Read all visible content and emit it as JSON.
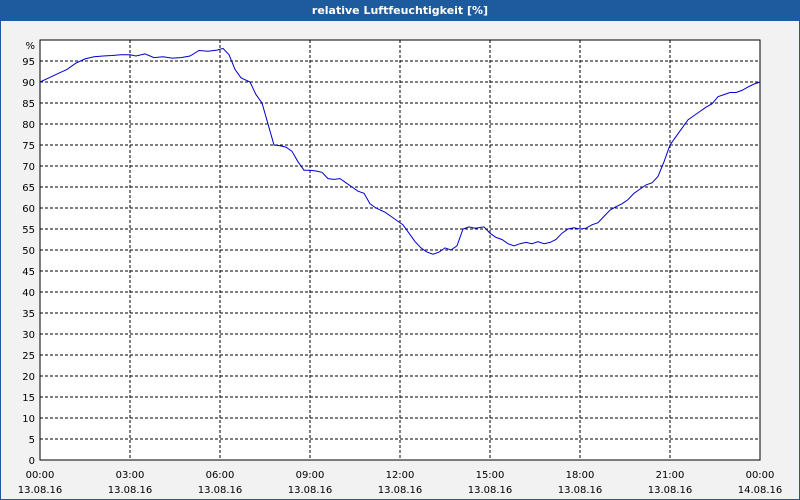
{
  "chart_data": {
    "type": "line",
    "title": "relative Luftfeuchtigkeit [%]",
    "y_unit_label": "%",
    "ylim": [
      0,
      100
    ],
    "y_ticks": [
      0,
      5,
      10,
      15,
      20,
      25,
      30,
      35,
      40,
      45,
      50,
      55,
      60,
      65,
      70,
      75,
      80,
      85,
      90,
      95
    ],
    "x_ticks": [
      {
        "time": "00:00",
        "date": "13.08.16"
      },
      {
        "time": "03:00",
        "date": "13.08.16"
      },
      {
        "time": "06:00",
        "date": "13.08.16"
      },
      {
        "time": "09:00",
        "date": "13.08.16"
      },
      {
        "time": "12:00",
        "date": "13.08.16"
      },
      {
        "time": "15:00",
        "date": "13.08.16"
      },
      {
        "time": "18:00",
        "date": "13.08.16"
      },
      {
        "time": "21:00",
        "date": "13.08.16"
      },
      {
        "time": "00:00",
        "date": "14.08.16"
      }
    ],
    "xlim_hours": [
      0,
      24
    ],
    "grid": true,
    "series": [
      {
        "color": "#0000cc",
        "points": [
          [
            0.0,
            90
          ],
          [
            0.3,
            91
          ],
          [
            0.6,
            92
          ],
          [
            0.9,
            93
          ],
          [
            1.2,
            94.5
          ],
          [
            1.5,
            95.5
          ],
          [
            1.8,
            96
          ],
          [
            2.1,
            96.2
          ],
          [
            2.4,
            96.3
          ],
          [
            2.7,
            96.5
          ],
          [
            3.0,
            96.5
          ],
          [
            3.2,
            96.2
          ],
          [
            3.5,
            96.7
          ],
          [
            3.8,
            95.8
          ],
          [
            4.1,
            96
          ],
          [
            4.4,
            95.7
          ],
          [
            4.7,
            95.8
          ],
          [
            5.0,
            96.2
          ],
          [
            5.3,
            97.5
          ],
          [
            5.6,
            97.3
          ],
          [
            5.9,
            97.6
          ],
          [
            6.1,
            98
          ],
          [
            6.3,
            96.5
          ],
          [
            6.5,
            93
          ],
          [
            6.7,
            91
          ],
          [
            7.0,
            90
          ],
          [
            7.2,
            87
          ],
          [
            7.4,
            85
          ],
          [
            7.6,
            80
          ],
          [
            7.8,
            75
          ],
          [
            8.0,
            74.8
          ],
          [
            8.2,
            74.5
          ],
          [
            8.4,
            73.5
          ],
          [
            8.6,
            71
          ],
          [
            8.8,
            69
          ],
          [
            9.0,
            69
          ],
          [
            9.2,
            68.8
          ],
          [
            9.4,
            68.5
          ],
          [
            9.6,
            67
          ],
          [
            9.8,
            66.8
          ],
          [
            10.0,
            67
          ],
          [
            10.2,
            66
          ],
          [
            10.4,
            65
          ],
          [
            10.6,
            64
          ],
          [
            10.8,
            63.5
          ],
          [
            11.0,
            61
          ],
          [
            11.2,
            60
          ],
          [
            11.5,
            59
          ],
          [
            11.7,
            58
          ],
          [
            11.9,
            57
          ],
          [
            12.1,
            56
          ],
          [
            12.3,
            54
          ],
          [
            12.5,
            52
          ],
          [
            12.7,
            50.5
          ],
          [
            12.9,
            49.5
          ],
          [
            13.1,
            49
          ],
          [
            13.3,
            49.5
          ],
          [
            13.5,
            50.5
          ],
          [
            13.7,
            50
          ],
          [
            13.9,
            51
          ],
          [
            14.1,
            55
          ],
          [
            14.3,
            55.5
          ],
          [
            14.5,
            55.2
          ],
          [
            14.8,
            55.5
          ],
          [
            15.0,
            54
          ],
          [
            15.2,
            53
          ],
          [
            15.4,
            52.5
          ],
          [
            15.6,
            51.5
          ],
          [
            15.8,
            51
          ],
          [
            16.0,
            51.5
          ],
          [
            16.2,
            51.8
          ],
          [
            16.4,
            51.5
          ],
          [
            16.6,
            52
          ],
          [
            16.8,
            51.5
          ],
          [
            17.0,
            51.8
          ],
          [
            17.2,
            52.5
          ],
          [
            17.4,
            54
          ],
          [
            17.6,
            55
          ],
          [
            17.8,
            55.3
          ],
          [
            18.0,
            55
          ],
          [
            18.2,
            55.2
          ],
          [
            18.4,
            56
          ],
          [
            18.6,
            56.5
          ],
          [
            18.8,
            58
          ],
          [
            19.0,
            59.5
          ],
          [
            19.2,
            60.3
          ],
          [
            19.4,
            61
          ],
          [
            19.6,
            62
          ],
          [
            19.8,
            63.5
          ],
          [
            20.0,
            64.5
          ],
          [
            20.2,
            65.5
          ],
          [
            20.4,
            66
          ],
          [
            20.6,
            67.5
          ],
          [
            20.8,
            71
          ],
          [
            21.0,
            75
          ],
          [
            21.2,
            77
          ],
          [
            21.4,
            79
          ],
          [
            21.6,
            81
          ],
          [
            21.8,
            82
          ],
          [
            22.0,
            83
          ],
          [
            22.2,
            84
          ],
          [
            22.4,
            84.8
          ],
          [
            22.6,
            86.5
          ],
          [
            22.8,
            87
          ],
          [
            23.0,
            87.5
          ],
          [
            23.2,
            87.5
          ],
          [
            23.4,
            88
          ],
          [
            23.6,
            88.8
          ],
          [
            23.8,
            89.5
          ],
          [
            24.0,
            90
          ]
        ]
      }
    ]
  }
}
